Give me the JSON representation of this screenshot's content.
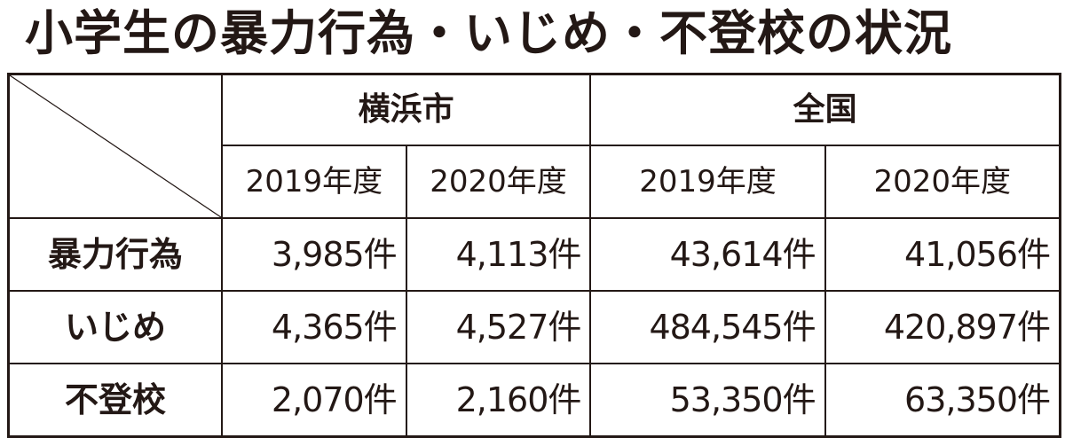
{
  "title": "小学生の暴力行為・いじめ・不登校の状況",
  "table": {
    "groups": [
      "横浜市",
      "全国"
    ],
    "years": [
      "2019年度",
      "2020年度",
      "2019年度",
      "2020年度"
    ],
    "rows": [
      {
        "label": "暴力行為",
        "values": [
          "3,985件",
          "4,113件",
          "43,614件",
          "41,056件"
        ]
      },
      {
        "label": "いじめ",
        "values": [
          "4,365件",
          "4,527件",
          "484,545件",
          "420,897件"
        ]
      },
      {
        "label": "不登校",
        "values": [
          "2,070件",
          "2,160件",
          "53,350件",
          "63,350件"
        ]
      }
    ]
  }
}
